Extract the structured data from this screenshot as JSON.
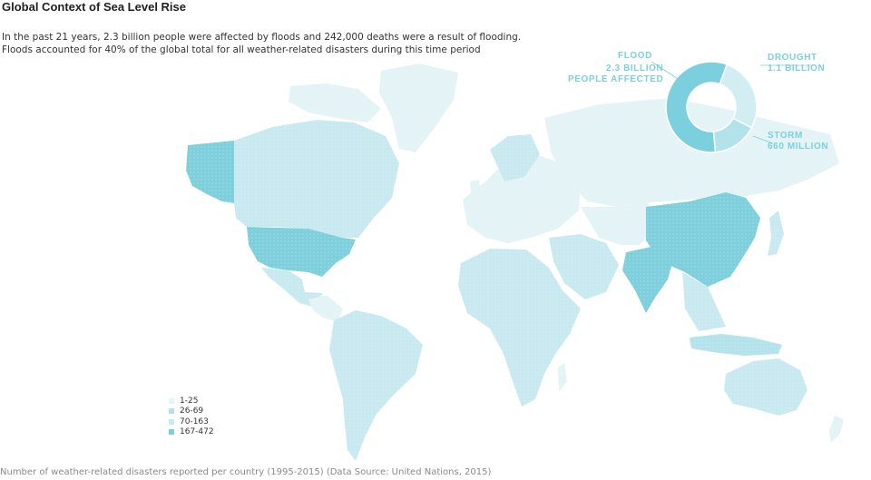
{
  "title": "Global Context of Sea Level Rise",
  "intro": {
    "line1": "In the past 21 years, 2.3 billion people were affected by floods and 242,000 deaths were a result of flooding.",
    "line2": "Floods accounted for 40% of the global total for all weather-related disasters during this time period"
  },
  "donut": {
    "segments": [
      {
        "label_line1": "FLOOD",
        "label_line2": "2.3 BILLION",
        "label_line3": "PEOPLE AFFECTED",
        "share": 0.57,
        "color": "#7ccfdc"
      },
      {
        "label_line1": "DROUGHT",
        "label_line2": "1.1 BILLION",
        "share": 0.27,
        "color": "#d3eef3"
      },
      {
        "label_line1": "STORM",
        "label_line2": "660 MILLION",
        "share": 0.16,
        "color": "#b2e2ea"
      }
    ]
  },
  "legend": [
    {
      "label": "1-25",
      "color": "#e4f3f6"
    },
    {
      "label": "26-69",
      "color": "#b3e2ea"
    },
    {
      "label": "70-163",
      "color": "#c8e9ef"
    },
    {
      "label": "167-472",
      "color": "#7ecfdc"
    }
  ],
  "source": "Number of weather-related disasters reported per country (1995-2015) (Data Source: United Nations, 2015)"
}
